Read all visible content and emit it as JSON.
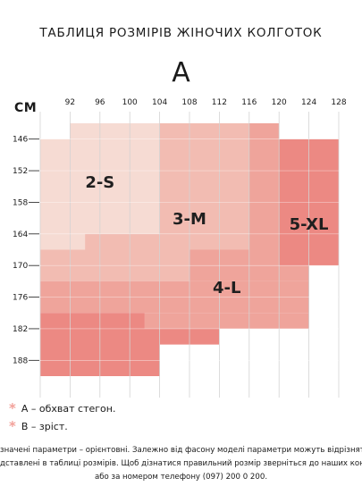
{
  "title": "ТАБЛИЦЯ РОЗМІРІВ ЖІНОЧИХ КОЛГОТОК",
  "x_axis_name": "A",
  "y_axis_unit": "CM",
  "chart_data": {
    "type": "heatmap",
    "title": "ТАБЛИЦЯ РОЗМІРІВ ЖІНОЧИХ КОЛГОТОК",
    "xlabel": "A",
    "ylabel": "CM",
    "x_ticks": [
      92,
      96,
      100,
      104,
      108,
      112,
      116,
      120,
      124,
      128
    ],
    "y_ticks": [
      146,
      152,
      158,
      164,
      170,
      176,
      182,
      188
    ],
    "grid": true,
    "x_range": [
      88,
      128
    ],
    "y_range": [
      143,
      191
    ],
    "colors": {
      "2-S": "#f6dbd3",
      "3-M": "#f2bcb2",
      "4-L": "#efa49b",
      "5-XL": "#ec8983"
    },
    "regions": [
      {
        "size": "2-S",
        "cells": [
          [
            92,
            104,
            143,
            146
          ],
          [
            88,
            104,
            146,
            164
          ],
          [
            88,
            94,
            164,
            167
          ]
        ]
      },
      {
        "size": "3-M",
        "cells": [
          [
            104,
            116,
            143,
            146
          ],
          [
            104,
            116,
            146,
            164
          ],
          [
            94,
            116,
            164,
            167
          ],
          [
            88,
            108,
            167,
            173
          ]
        ]
      },
      {
        "size": "4-L",
        "cells": [
          [
            116,
            120,
            143,
            146
          ],
          [
            116,
            120,
            146,
            167
          ],
          [
            108,
            120,
            167,
            170
          ],
          [
            108,
            124,
            170,
            173
          ],
          [
            88,
            124,
            173,
            179
          ],
          [
            102,
            124,
            179,
            182
          ]
        ]
      },
      {
        "size": "5-XL",
        "cells": [
          [
            120,
            128,
            146,
            170
          ],
          [
            88,
            102,
            179,
            182
          ],
          [
            88,
            104,
            182,
            188
          ],
          [
            104,
            112,
            182,
            185
          ],
          [
            88,
            104,
            188,
            191
          ]
        ]
      }
    ],
    "labels": [
      {
        "text": "2-S",
        "x": 96,
        "y": 154
      },
      {
        "text": "3-M",
        "x": 108,
        "y": 161
      },
      {
        "text": "4-L",
        "x": 113,
        "y": 174
      },
      {
        "text": "5-XL",
        "x": 124,
        "y": 162
      }
    ]
  },
  "legend": [
    {
      "marker": "*",
      "text": "А – обхват стегон."
    },
    {
      "marker": "*",
      "text": "В – зріст."
    }
  ],
  "note_lines": [
    "значені параметри – орієнтовні. Залежно від фасону моделі параметри можуть відрізнятися від т",
    "дставлені в таблиці розмірів. Щоб дізнатися правильний розмір зверніться до наших консультант",
    "або за номером телефону (097) 200 0 200."
  ]
}
